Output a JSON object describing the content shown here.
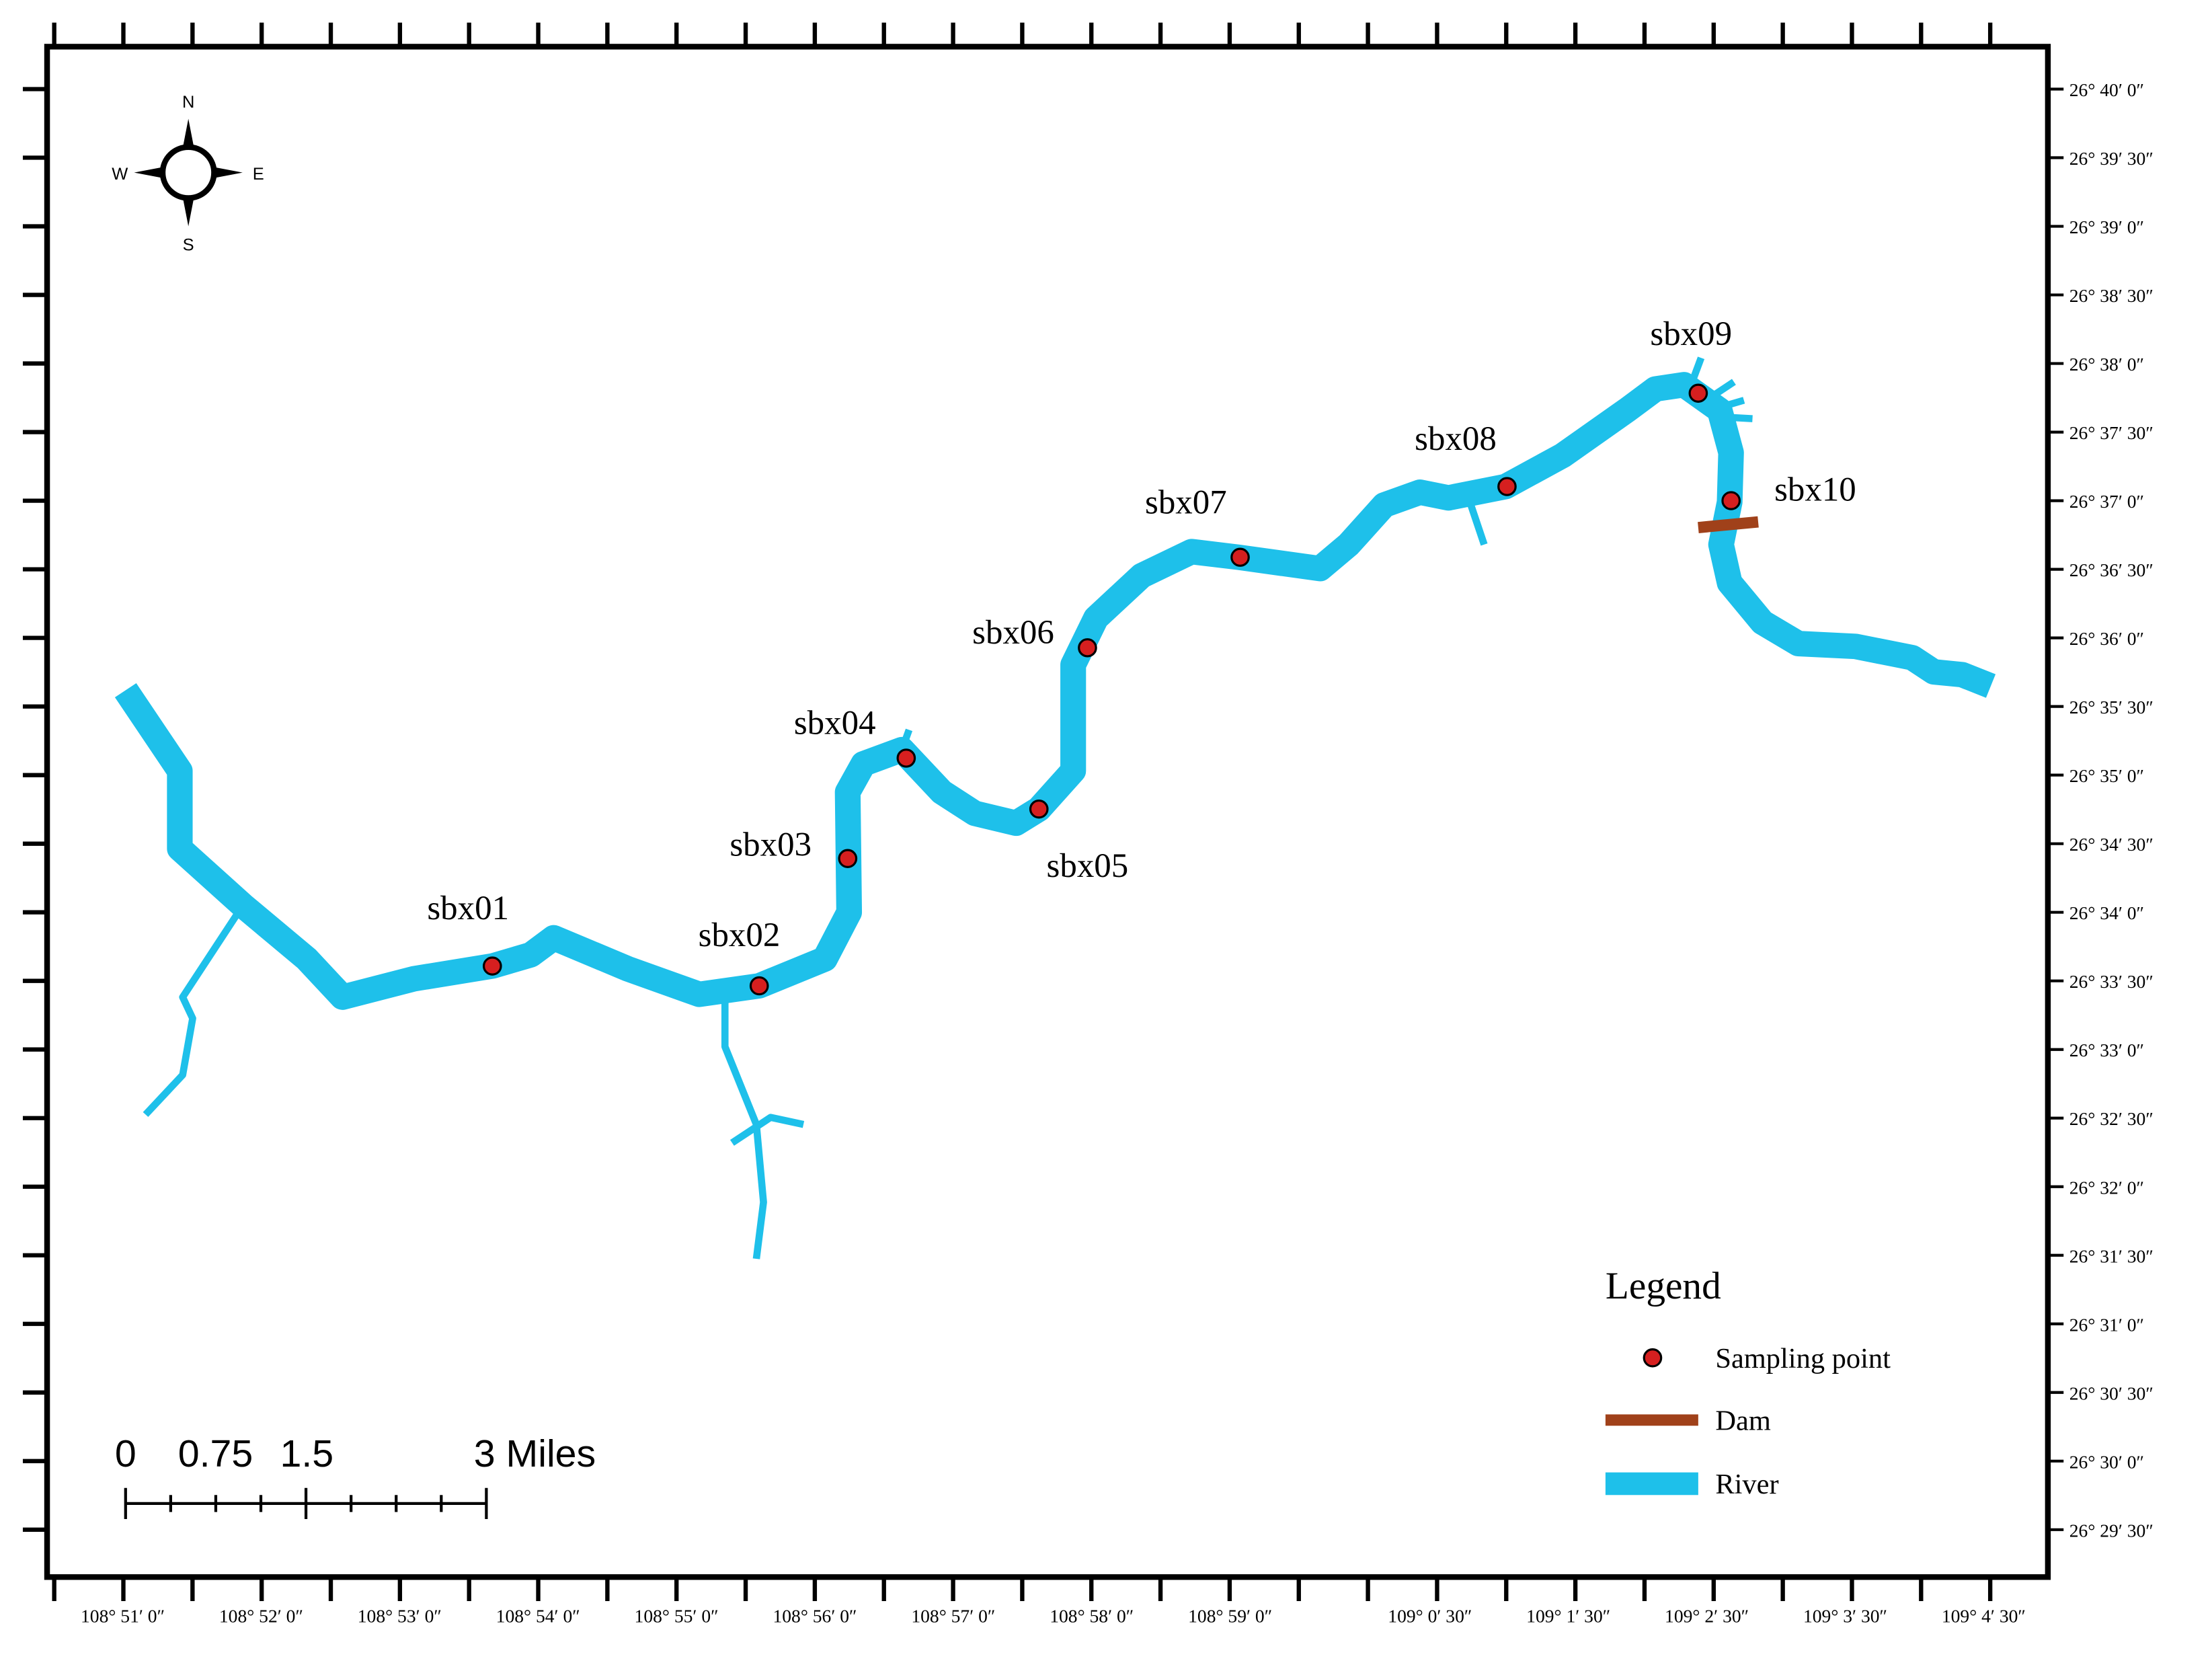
{
  "compass": {
    "north": "N",
    "south": "S",
    "west": "W",
    "east": "E"
  },
  "sampling_points": [
    "sbx01",
    "sbx02",
    "sbx03",
    "sbx04",
    "sbx05",
    "sbx06",
    "sbx07",
    "sbx08",
    "sbx09",
    "sbx10"
  ],
  "latitude_labels": [
    "26° 40′ 0″",
    "26° 39′ 30″",
    "26° 39′ 0″",
    "26° 38′ 30″",
    "26° 38′ 0″",
    "26° 37′ 30″",
    "26° 37′ 0″",
    "26° 36′ 30″",
    "26° 36′ 0″",
    "26° 35′ 30″",
    "26° 35′ 0″",
    "26° 34′ 30″",
    "26° 34′ 0″",
    "26° 33′ 30″",
    "26° 33′ 0″",
    "26° 32′ 30″",
    "26° 32′ 0″",
    "26° 31′ 30″",
    "26° 31′ 0″",
    "26° 30′ 30″",
    "26° 30′ 0″",
    "26° 29′ 30″"
  ],
  "longitude_labels": [
    "108° 51′ 0″",
    "108° 52′ 0″",
    "108° 53′ 0″",
    "108° 54′ 0″",
    "108° 55′ 0″",
    "108° 56′ 0″",
    "108° 57′ 0″",
    "108° 58′ 0″",
    "108° 59′ 0″",
    "109° 0′ 30″",
    "109° 1′ 30″",
    "109° 2′ 30″",
    "109° 3′ 30″",
    "109° 4′ 30″"
  ],
  "scale_bar": [
    "0",
    "0.75",
    "1.5",
    "3 Miles"
  ],
  "legend": {
    "title": "Legend",
    "items": [
      "Sampling point",
      "Dam",
      "River"
    ]
  }
}
